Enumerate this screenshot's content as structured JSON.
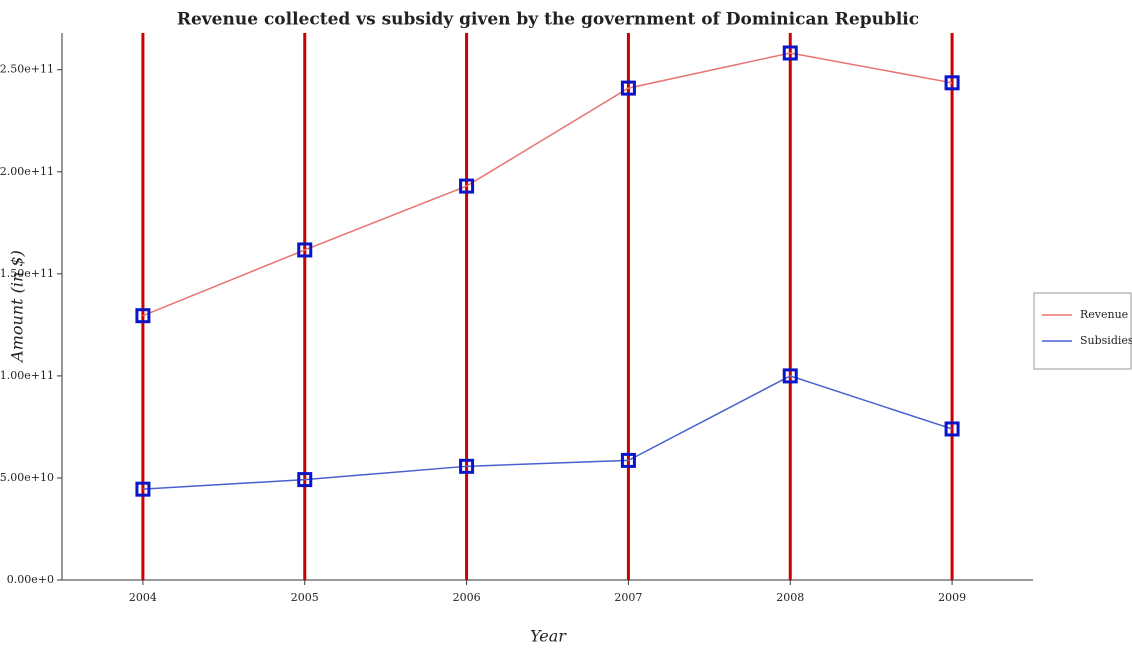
{
  "chart_data": {
    "type": "line",
    "title": "Revenue collected vs subsidy given by the government of Dominican Republic",
    "x_label": "Year",
    "y_label": "Amount (in $)",
    "categories": [
      "2004",
      "2005",
      "2006",
      "2007",
      "2008",
      "2009"
    ],
    "series": [
      {
        "name": "Revenue",
        "color": "#e87373",
        "values": [
          129500000000,
          161700000000,
          193000000000,
          241000000000,
          258200000000,
          243600000000
        ]
      },
      {
        "name": "Subsidies",
        "color": "#4a5fd0",
        "values": [
          44500000000,
          49200000000,
          55700000000,
          58600000000,
          100000000000,
          74000000000
        ]
      }
    ],
    "ylim": [
      0,
      268000000000
    ],
    "yticks": [
      {
        "value": 0,
        "label": "0.00e+0"
      },
      {
        "value": 50000000000,
        "label": "5.00e+10"
      },
      {
        "value": 100000000000,
        "label": "1.00e+11"
      },
      {
        "value": 150000000000,
        "label": "1.50e+11"
      },
      {
        "value": 200000000000,
        "label": "2.00e+11"
      },
      {
        "value": 250000000000,
        "label": "2.50e+11"
      }
    ],
    "legend": "right"
  }
}
